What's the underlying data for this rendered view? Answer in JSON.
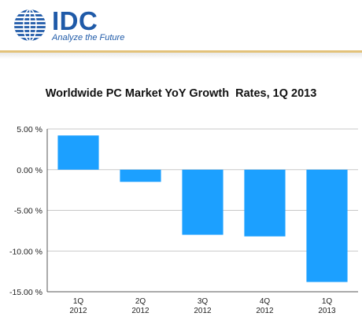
{
  "brand": {
    "name": "IDC",
    "tagline": "Analyze the Future",
    "logo_color": "#1f5aa8"
  },
  "colors": {
    "bar": "#1ca0ff",
    "grid": "#c8c8c8",
    "axis": "#555555",
    "accent_band": "#e3c27a"
  },
  "chart_data": {
    "type": "bar",
    "title": "Worldwide PC Market YoY Growth  Rates, 1Q 2013",
    "xlabel": "",
    "ylabel": "",
    "categories": [
      [
        "1Q",
        "2012"
      ],
      [
        "2Q",
        "2012"
      ],
      [
        "3Q",
        "2012"
      ],
      [
        "4Q",
        "2012"
      ],
      [
        "1Q",
        "2013"
      ]
    ],
    "values": [
      4.2,
      -1.5,
      -8.0,
      -8.2,
      -13.8
    ],
    "ylim": [
      -15,
      5
    ],
    "yticks": [
      5,
      0,
      -5,
      -10,
      -15
    ],
    "ytick_labels": [
      "5.00 %",
      "0.00 %",
      "-5.00 %",
      "-10.00 %",
      "-15.00 %"
    ],
    "grid": true,
    "legend": "none"
  }
}
